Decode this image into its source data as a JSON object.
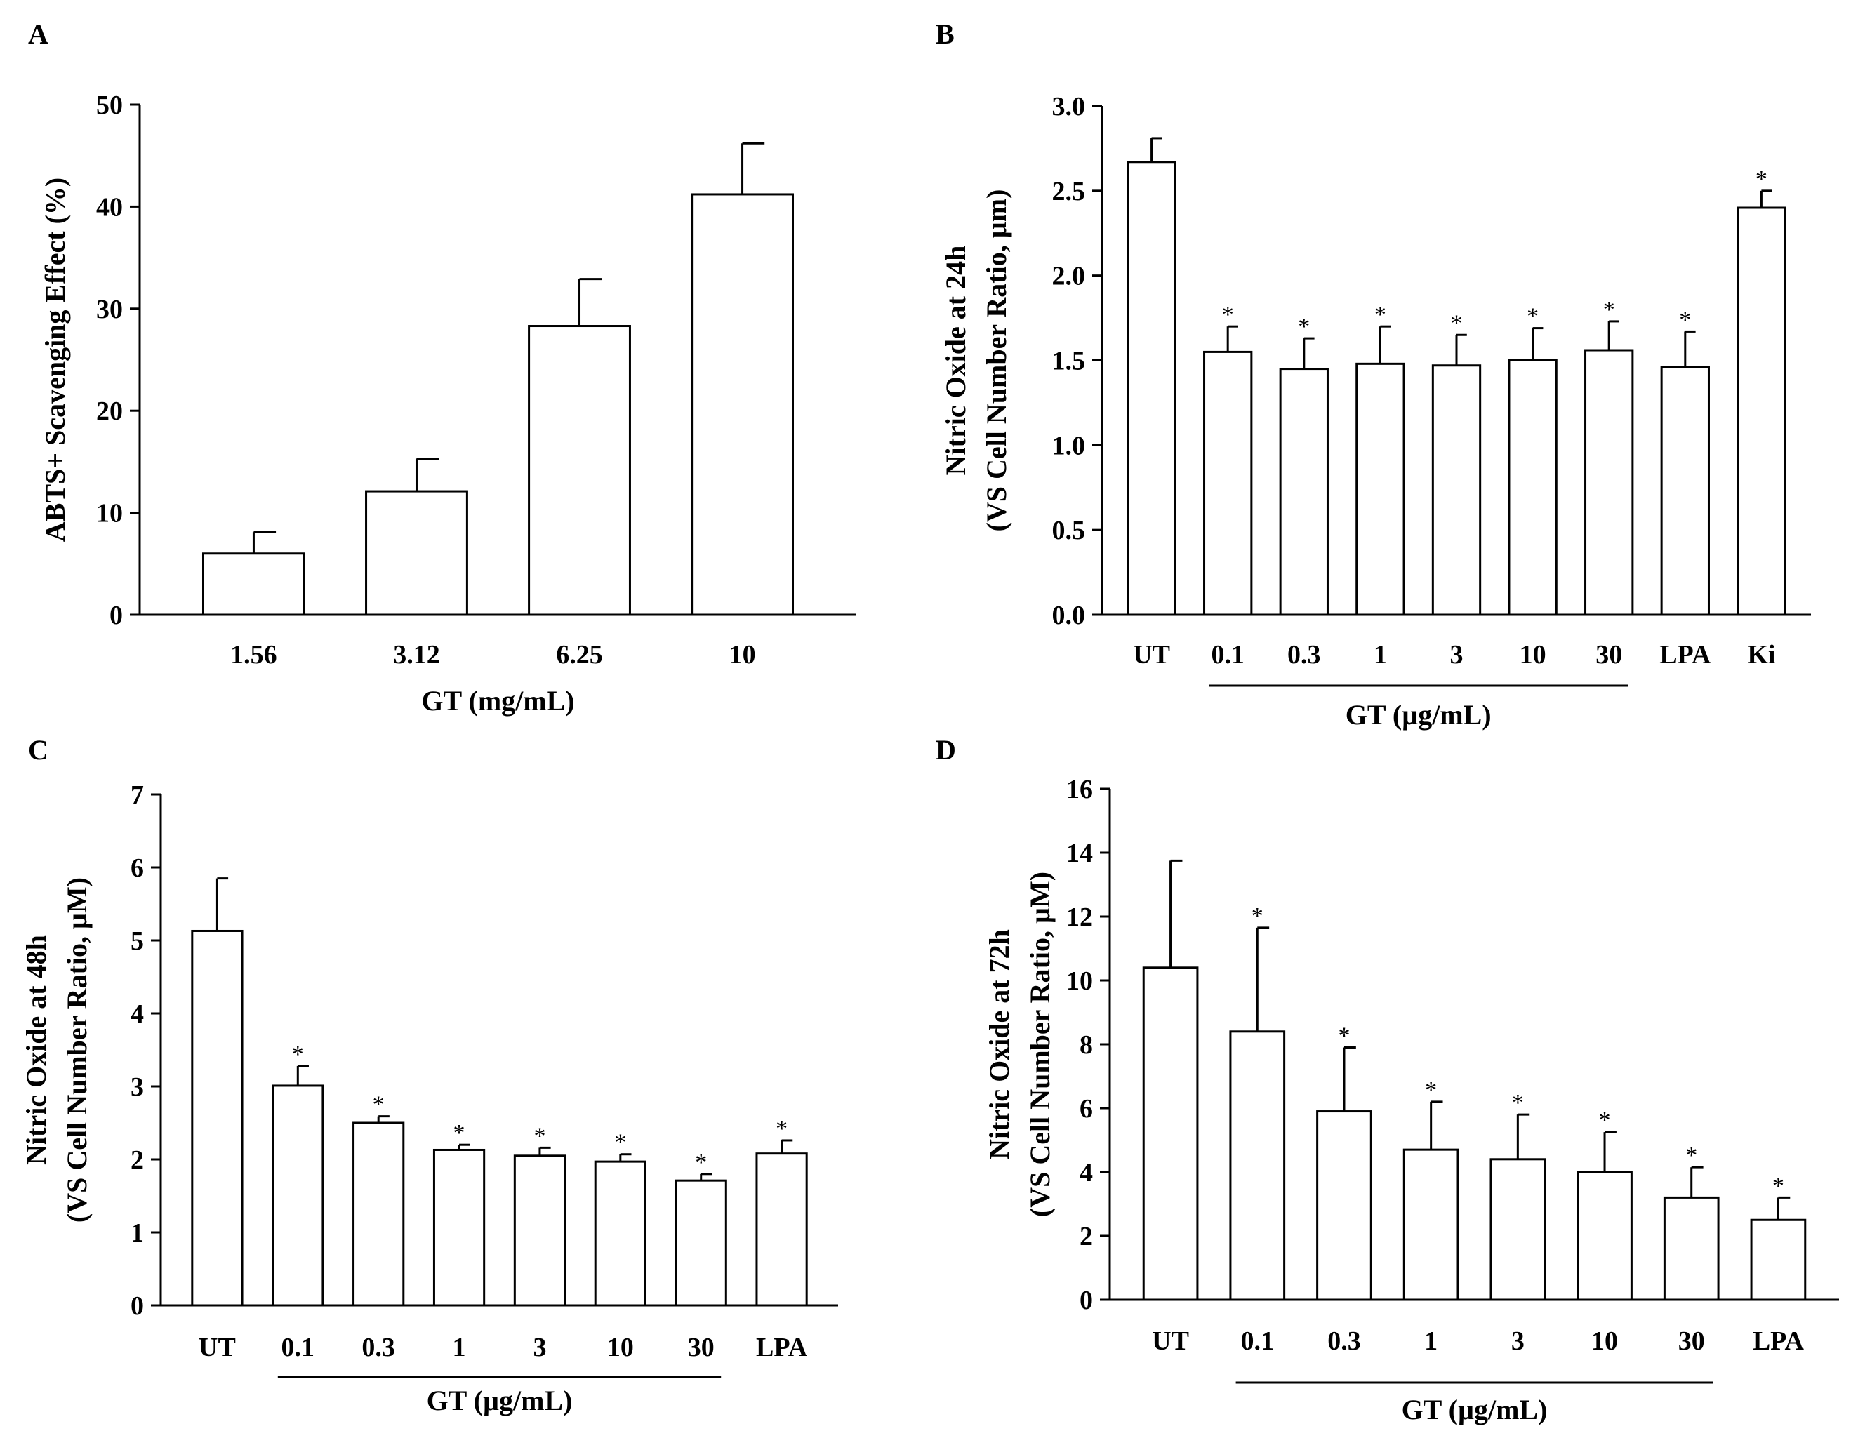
{
  "chart_data": [
    {
      "panel": "A",
      "type": "bar",
      "xlabel": "GT (mg/mL)",
      "ylabel": "ABTS+ Scavenging Effect (%)",
      "ylim": [
        0,
        50
      ],
      "yticks": [
        "0",
        "10",
        "20",
        "30",
        "40",
        "50"
      ],
      "categories": [
        "1.56",
        "3.12",
        "6.25",
        "10"
      ],
      "series": [
        {
          "values": [
            6.0,
            12.1,
            28.3,
            41.2
          ],
          "errors": [
            2.1,
            3.2,
            4.6,
            5.0
          ],
          "significance": [
            "",
            "",
            "",
            ""
          ]
        }
      ],
      "group_underline": null
    },
    {
      "panel": "B",
      "type": "bar",
      "xlabel": "GT (µg/mL)",
      "ylabel": [
        "Nitric Oxide at 24h",
        "(VS Cell Number Ratio, µm)"
      ],
      "ylim": [
        0,
        3.0
      ],
      "yticks": [
        "0.0",
        "0.5",
        "1.0",
        "1.5",
        "2.0",
        "2.5",
        "3.0"
      ],
      "categories": [
        "UT",
        "0.1",
        "0.3",
        "1",
        "3",
        "10",
        "30",
        "LPA",
        "Ki"
      ],
      "series": [
        {
          "values": [
            2.67,
            1.55,
            1.45,
            1.48,
            1.47,
            1.5,
            1.56,
            1.46,
            2.4
          ],
          "errors": [
            0.14,
            0.15,
            0.18,
            0.22,
            0.18,
            0.19,
            0.17,
            0.21,
            0.1
          ],
          "significance": [
            "",
            "*",
            "*",
            "*",
            "*",
            "*",
            "*",
            "*",
            "*"
          ]
        }
      ],
      "group_underline": {
        "from": "0.1",
        "to": "30"
      }
    },
    {
      "panel": "C",
      "type": "bar",
      "xlabel": "GT (µg/mL)",
      "ylabel": [
        "Nitric Oxide at 48h",
        "(VS Cell Number Ratio, µM)"
      ],
      "ylim": [
        0,
        7
      ],
      "yticks": [
        "0",
        "1",
        "2",
        "3",
        "4",
        "5",
        "6",
        "7"
      ],
      "categories": [
        "UT",
        "0.1",
        "0.3",
        "1",
        "3",
        "10",
        "30",
        "LPA"
      ],
      "series": [
        {
          "values": [
            5.13,
            3.01,
            2.5,
            2.13,
            2.05,
            1.97,
            1.71,
            2.08
          ],
          "errors": [
            0.72,
            0.27,
            0.09,
            0.07,
            0.11,
            0.1,
            0.09,
            0.18
          ],
          "significance": [
            "",
            "*",
            "*",
            "*",
            "*",
            "*",
            "*",
            "*"
          ]
        }
      ],
      "group_underline": {
        "from": "0.1",
        "to": "30"
      }
    },
    {
      "panel": "D",
      "type": "bar",
      "xlabel": "GT (µg/mL)",
      "ylabel": [
        "Nitric Oxide at 72h",
        "(VS Cell Number Ratio, µM)"
      ],
      "ylim": [
        0,
        16
      ],
      "yticks": [
        "0",
        "2",
        "4",
        "6",
        "8",
        "10",
        "12",
        "14",
        "16"
      ],
      "categories": [
        "UT",
        "0.1",
        "0.3",
        "1",
        "3",
        "10",
        "30",
        "LPA"
      ],
      "series": [
        {
          "values": [
            10.4,
            8.4,
            5.9,
            4.7,
            4.4,
            4.0,
            3.2,
            2.5
          ],
          "errors": [
            3.35,
            3.25,
            2.0,
            1.5,
            1.4,
            1.25,
            0.95,
            0.7
          ],
          "significance": [
            "",
            "*",
            "*",
            "*",
            "*",
            "*",
            "*",
            "*"
          ]
        }
      ],
      "group_underline": {
        "from": "0.1",
        "to": "30"
      }
    }
  ]
}
